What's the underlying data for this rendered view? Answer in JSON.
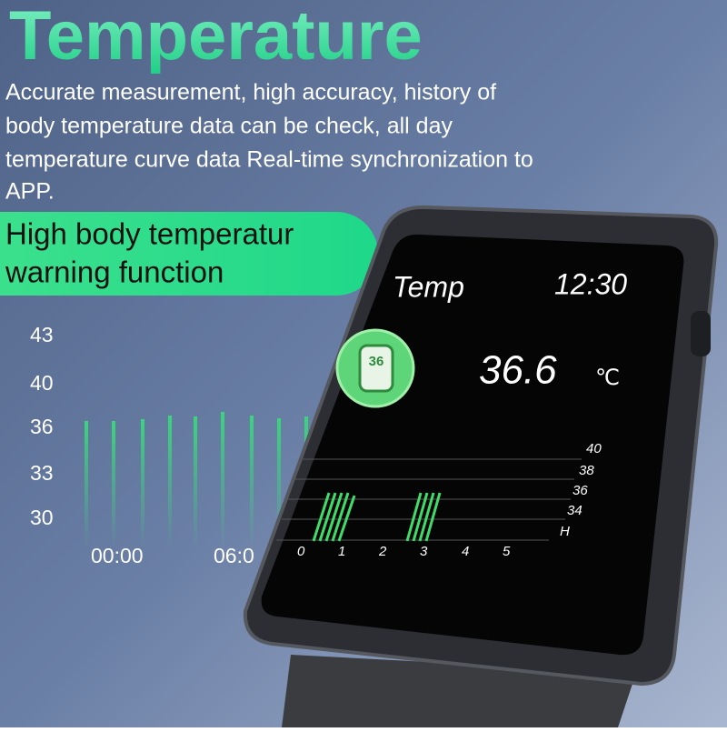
{
  "headline": "Temperature",
  "description": [
    "Accurate measurement, high accuracy, history of",
    "body temperature data can be check, all day",
    "temperature curve data Real-time synchronization to",
    "APP."
  ],
  "banner": [
    "High body temperatur",
    "warning function"
  ],
  "background_chart": {
    "y_labels": [
      "43",
      "40",
      "36",
      "33",
      "30"
    ],
    "x_labels": [
      "00:00",
      "06:0"
    ]
  },
  "watch": {
    "label": "Temp",
    "time": "12:30",
    "icon_text": "36",
    "reading": "36.6",
    "unit": "℃",
    "chart": {
      "y_labels": [
        "40",
        "38",
        "36",
        "34",
        "H"
      ],
      "x_labels": [
        "0",
        "1",
        "2",
        "3",
        "4",
        "5"
      ]
    }
  }
}
